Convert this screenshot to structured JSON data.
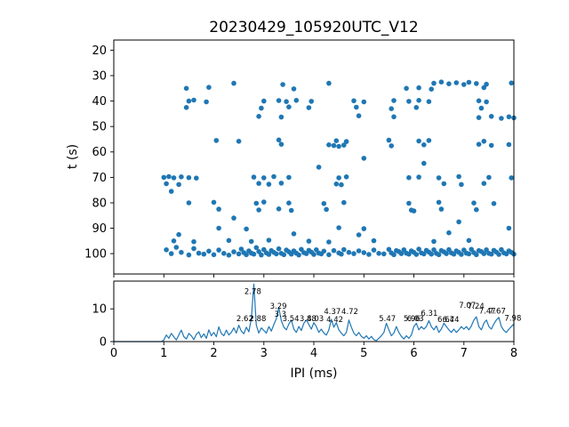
{
  "figure": {
    "title": "20230429_105920UTC_V12",
    "accent_color": "#1f77b4",
    "background": "#ffffff"
  },
  "chart_data": [
    {
      "id": "ipi-vs-time-scatter",
      "type": "scatter",
      "title": "20230429_105920UTC_V12",
      "xlabel": "",
      "ylabel": "t (s)",
      "xlim": [
        0,
        8
      ],
      "ylim": [
        16,
        108
      ],
      "y_axis_inverted": true,
      "xticks": [
        0,
        1,
        2,
        3,
        4,
        5,
        6,
        7,
        8
      ],
      "yticks": [
        20,
        30,
        40,
        50,
        60,
        70,
        80,
        90,
        100
      ],
      "grid": false,
      "marker_color": "#1f77b4",
      "points": [
        [
          2.4,
          33
        ],
        [
          3.38,
          33.5
        ],
        [
          4.3,
          33
        ],
        [
          6.4,
          33
        ],
        [
          6.55,
          32.5
        ],
        [
          6.7,
          33.2
        ],
        [
          6.85,
          32.8
        ],
        [
          7.0,
          33.5
        ],
        [
          7.1,
          32.6
        ],
        [
          7.25,
          33.1
        ],
        [
          7.45,
          33.4
        ],
        [
          7.95,
          32.9
        ],
        [
          1.45,
          35
        ],
        [
          1.9,
          34.6
        ],
        [
          3.6,
          35.2
        ],
        [
          5.85,
          35
        ],
        [
          6.1,
          34.8
        ],
        [
          6.35,
          35.3
        ],
        [
          7.4,
          34.7
        ],
        [
          1.5,
          40
        ],
        [
          1.6,
          39.6
        ],
        [
          1.85,
          40.3
        ],
        [
          3.0,
          40
        ],
        [
          3.3,
          39.8
        ],
        [
          3.45,
          40.2
        ],
        [
          3.65,
          39.7
        ],
        [
          3.95,
          40.1
        ],
        [
          4.8,
          39.9
        ],
        [
          5.0,
          40.3
        ],
        [
          5.6,
          39.8
        ],
        [
          5.9,
          40.1
        ],
        [
          6.1,
          39.7
        ],
        [
          6.3,
          40.2
        ],
        [
          7.3,
          39.9
        ],
        [
          7.45,
          40.3
        ],
        [
          1.45,
          42.5
        ],
        [
          2.95,
          42.8
        ],
        [
          3.5,
          42.3
        ],
        [
          3.9,
          42.6
        ],
        [
          4.85,
          42.4
        ],
        [
          5.55,
          43
        ],
        [
          6.05,
          42.5
        ],
        [
          7.35,
          42.8
        ],
        [
          2.9,
          46
        ],
        [
          3.35,
          46.3
        ],
        [
          4.9,
          45.8
        ],
        [
          5.6,
          46.2
        ],
        [
          7.3,
          46.5
        ],
        [
          7.55,
          46
        ],
        [
          7.75,
          46.8
        ],
        [
          7.9,
          46.2
        ],
        [
          8.0,
          46.6
        ],
        [
          2.05,
          55.5
        ],
        [
          2.5,
          55.8
        ],
        [
          3.3,
          55.3
        ],
        [
          4.45,
          55.6
        ],
        [
          4.65,
          55.9
        ],
        [
          5.5,
          55.4
        ],
        [
          6.1,
          55.7
        ],
        [
          6.3,
          55.5
        ],
        [
          7.4,
          55.8
        ],
        [
          3.35,
          57
        ],
        [
          4.3,
          57.2
        ],
        [
          4.4,
          57.5
        ],
        [
          4.5,
          57.8
        ],
        [
          4.6,
          57.3
        ],
        [
          5.55,
          57.6
        ],
        [
          6.2,
          57.2
        ],
        [
          7.3,
          57
        ],
        [
          7.55,
          57.4
        ],
        [
          7.9,
          57.1
        ],
        [
          6.2,
          64.5
        ],
        [
          4.1,
          66
        ],
        [
          5.0,
          62.5
        ],
        [
          1.0,
          70
        ],
        [
          1.1,
          69.7
        ],
        [
          1.2,
          70.2
        ],
        [
          1.35,
          69.8
        ],
        [
          1.5,
          70.1
        ],
        [
          1.65,
          70.3
        ],
        [
          2.8,
          69.9
        ],
        [
          3.0,
          70.2
        ],
        [
          3.2,
          69.7
        ],
        [
          3.5,
          70
        ],
        [
          4.5,
          70.2
        ],
        [
          4.65,
          69.8
        ],
        [
          5.9,
          70.1
        ],
        [
          6.1,
          69.9
        ],
        [
          6.5,
          70.2
        ],
        [
          6.9,
          69.7
        ],
        [
          7.5,
          70
        ],
        [
          7.95,
          70.2
        ],
        [
          1.05,
          72.5
        ],
        [
          1.3,
          72.8
        ],
        [
          2.9,
          72.4
        ],
        [
          3.1,
          72.7
        ],
        [
          3.35,
          72.3
        ],
        [
          4.45,
          72.6
        ],
        [
          4.55,
          72.9
        ],
        [
          6.6,
          72.5
        ],
        [
          6.95,
          72.8
        ],
        [
          7.4,
          72.4
        ],
        [
          1.15,
          75.5
        ],
        [
          1.5,
          80
        ],
        [
          2.0,
          79.8
        ],
        [
          2.85,
          80.2
        ],
        [
          3.0,
          79.7
        ],
        [
          3.5,
          80.1
        ],
        [
          4.2,
          80.3
        ],
        [
          4.6,
          79.9
        ],
        [
          5.9,
          80.2
        ],
        [
          6.5,
          79.8
        ],
        [
          7.2,
          80.1
        ],
        [
          7.6,
          80.3
        ],
        [
          2.1,
          82.5
        ],
        [
          2.9,
          82.8
        ],
        [
          3.3,
          82.4
        ],
        [
          3.55,
          83
        ],
        [
          4.25,
          82.6
        ],
        [
          5.95,
          82.9
        ],
        [
          6.55,
          82.5
        ],
        [
          7.25,
          82.7
        ],
        [
          6.0,
          83.2
        ],
        [
          2.1,
          90
        ],
        [
          2.65,
          90.3
        ],
        [
          4.5,
          89.8
        ],
        [
          5.0,
          90.2
        ],
        [
          7.9,
          90
        ],
        [
          1.3,
          92.5
        ],
        [
          3.6,
          92.2
        ],
        [
          4.9,
          92.6
        ],
        [
          6.7,
          91.8
        ],
        [
          2.4,
          86
        ],
        [
          6.9,
          87.5
        ],
        [
          1.2,
          95
        ],
        [
          1.6,
          95.3
        ],
        [
          2.3,
          94.8
        ],
        [
          2.75,
          95.2
        ],
        [
          3.1,
          94.7
        ],
        [
          3.9,
          95.1
        ],
        [
          4.3,
          95.4
        ],
        [
          5.2,
          94.9
        ],
        [
          6.4,
          95.2
        ],
        [
          7.1,
          94.8
        ],
        [
          1.05,
          98.5
        ],
        [
          1.15,
          100
        ],
        [
          1.25,
          97.5
        ],
        [
          1.35,
          99.5
        ],
        [
          1.5,
          100.5
        ],
        [
          1.6,
          98
        ],
        [
          1.7,
          99.8
        ],
        [
          1.8,
          100.2
        ],
        [
          1.9,
          99
        ],
        [
          2.0,
          100.4
        ],
        [
          2.1,
          98.6
        ],
        [
          2.2,
          99.9
        ],
        [
          2.3,
          100.6
        ],
        [
          2.4,
          99.3
        ],
        [
          2.5,
          100.1
        ],
        [
          2.55,
          98.2
        ],
        [
          2.6,
          99.6
        ],
        [
          2.65,
          100.4
        ],
        [
          2.7,
          98.9
        ],
        [
          2.75,
          99.8
        ],
        [
          2.8,
          100.2
        ],
        [
          2.85,
          97.6
        ],
        [
          2.9,
          99.2
        ],
        [
          2.95,
          100.5
        ],
        [
          3.0,
          98.4
        ],
        [
          3.05,
          99.7
        ],
        [
          3.1,
          100.3
        ],
        [
          3.15,
          98.8
        ],
        [
          3.2,
          99.5
        ],
        [
          3.25,
          100.1
        ],
        [
          3.3,
          98.1
        ],
        [
          3.35,
          99.9
        ],
        [
          3.4,
          100.4
        ],
        [
          3.45,
          98.6
        ],
        [
          3.5,
          99.3
        ],
        [
          3.55,
          100.2
        ],
        [
          3.6,
          98.9
        ],
        [
          3.65,
          99.8
        ],
        [
          3.7,
          100.5
        ],
        [
          3.75,
          98.3
        ],
        [
          3.8,
          99.6
        ],
        [
          3.85,
          100.0
        ],
        [
          3.9,
          98.7
        ],
        [
          3.95,
          99.4
        ],
        [
          4.0,
          100.3
        ],
        [
          4.05,
          98.5
        ],
        [
          4.1,
          99.8
        ],
        [
          4.15,
          100.1
        ],
        [
          4.2,
          99.0
        ],
        [
          4.3,
          100.4
        ],
        [
          4.4,
          98.8
        ],
        [
          4.5,
          99.7
        ],
        [
          4.55,
          100.2
        ],
        [
          4.6,
          98.4
        ],
        [
          4.7,
          99.5
        ],
        [
          4.8,
          100.0
        ],
        [
          4.9,
          98.9
        ],
        [
          5.0,
          99.6
        ],
        [
          5.1,
          100.3
        ],
        [
          5.2,
          98.6
        ],
        [
          5.3,
          99.9
        ],
        [
          5.4,
          100.1
        ],
        [
          5.5,
          98.3
        ],
        [
          5.55,
          99.7
        ],
        [
          5.6,
          100.4
        ],
        [
          5.65,
          98.8
        ],
        [
          5.7,
          99.2
        ],
        [
          5.75,
          100.0
        ],
        [
          5.8,
          98.5
        ],
        [
          5.85,
          99.8
        ],
        [
          5.9,
          100.2
        ],
        [
          5.95,
          98.9
        ],
        [
          6.0,
          99.5
        ],
        [
          6.05,
          100.3
        ],
        [
          6.1,
          98.2
        ],
        [
          6.15,
          99.7
        ],
        [
          6.2,
          100.1
        ],
        [
          6.25,
          98.7
        ],
        [
          6.3,
          99.4
        ],
        [
          6.35,
          100.2
        ],
        [
          6.4,
          98.5
        ],
        [
          6.45,
          99.9
        ],
        [
          6.5,
          100.4
        ],
        [
          6.55,
          98.8
        ],
        [
          6.6,
          99.3
        ],
        [
          6.65,
          100.0
        ],
        [
          6.7,
          98.4
        ],
        [
          6.75,
          99.7
        ],
        [
          6.8,
          100.2
        ],
        [
          6.85,
          98.9
        ],
        [
          6.9,
          99.5
        ],
        [
          6.95,
          100.3
        ],
        [
          7.0,
          98.6
        ],
        [
          7.05,
          99.8
        ],
        [
          7.1,
          100.1
        ],
        [
          7.15,
          98.3
        ],
        [
          7.2,
          99.6
        ],
        [
          7.25,
          100.4
        ],
        [
          7.3,
          98.8
        ],
        [
          7.35,
          99.2
        ],
        [
          7.4,
          100.0
        ],
        [
          7.45,
          98.5
        ],
        [
          7.5,
          99.9
        ],
        [
          7.55,
          100.2
        ],
        [
          7.6,
          98.7
        ],
        [
          7.65,
          99.4
        ],
        [
          7.7,
          100.3
        ],
        [
          7.75,
          98.4
        ],
        [
          7.8,
          99.7
        ],
        [
          7.85,
          100.1
        ],
        [
          7.9,
          98.9
        ],
        [
          7.95,
          99.5
        ],
        [
          8.0,
          100.2
        ]
      ]
    },
    {
      "id": "ipi-rate-line",
      "type": "line",
      "xlabel": "IPI (ms)",
      "ylabel": "",
      "xlim": [
        0,
        8
      ],
      "ylim": [
        0,
        18.5
      ],
      "xticks": [
        0,
        1,
        2,
        3,
        4,
        5,
        6,
        7,
        8
      ],
      "yticks": [
        0,
        10
      ],
      "grid": false,
      "line_color": "#1f77b4",
      "x_start": 0,
      "x_step": 0.05,
      "y": [
        0,
        0,
        0,
        0,
        0,
        0,
        0,
        0,
        0,
        0,
        0,
        0,
        0,
        0,
        0,
        0,
        0,
        0,
        0,
        0,
        0.5,
        2,
        1,
        2.5,
        1.5,
        0.5,
        2,
        3.5,
        1.5,
        0.8,
        2.5,
        1.8,
        0.6,
        2.2,
        3,
        1.2,
        2.4,
        1,
        3.6,
        1.8,
        2.8,
        1.5,
        4.5,
        2.5,
        1.8,
        3.5,
        2,
        2.8,
        4.2,
        2.6,
        5,
        3.2,
        2.4,
        4.4,
        3,
        7,
        17.6,
        5,
        2.6,
        4.2,
        3.4,
        2.6,
        4.6,
        3.2,
        5.2,
        7,
        10.4,
        6.4,
        4.4,
        3.6,
        5.4,
        6.6,
        3.8,
        2.8,
        4.6,
        3.4,
        5.6,
        6.6,
        5.2,
        3.8,
        5.8,
        4.6,
        2.8,
        3.8,
        2.6,
        2,
        3.6,
        6.8,
        4.4,
        5.8,
        3.6,
        2.6,
        1.8,
        2.8,
        6.6,
        4.4,
        2.6,
        1.8,
        2.8,
        1.6,
        1,
        1.8,
        0.8,
        1.6,
        0.6,
        0.3,
        1,
        1.8,
        2.8,
        5.6,
        3.6,
        1.8,
        2.6,
        4.6,
        2.8,
        1.6,
        0.8,
        1.8,
        1,
        2,
        4.6,
        5.6,
        3.6,
        4.6,
        3.8,
        4.6,
        6.4,
        4.6,
        3.6,
        4.8,
        2.8,
        3.8,
        5.6,
        4.6,
        3.6,
        2.8,
        3.8,
        2.8,
        3.6,
        4.6,
        3.8,
        4.6,
        3.6,
        4.8,
        6.6,
        7.6,
        4.6,
        3.6,
        5.6,
        6.6,
        4.6,
        3.8,
        5.4,
        6.6,
        7.4,
        4.6,
        3.4,
        2.8,
        3.8,
        4.6,
        5.4
      ],
      "annotations": [
        {
          "label": "2.78",
          "x": 2.78,
          "y": 14.5
        },
        {
          "label": "2.62",
          "x": 2.62,
          "y": 6.2
        },
        {
          "label": "2.88",
          "x": 2.88,
          "y": 6.2
        },
        {
          "label": "3.29",
          "x": 3.29,
          "y": 10.1
        },
        {
          "label": "3.3",
          "x": 3.33,
          "y": 7.6
        },
        {
          "label": "3.54",
          "x": 3.54,
          "y": 6.3
        },
        {
          "label": "3.88",
          "x": 3.88,
          "y": 6.3
        },
        {
          "label": "4.03",
          "x": 4.03,
          "y": 6.3
        },
        {
          "label": "4.42",
          "x": 4.42,
          "y": 6.0
        },
        {
          "label": "4.37",
          "x": 4.37,
          "y": 8.4
        },
        {
          "label": "4.72",
          "x": 4.72,
          "y": 8.4
        },
        {
          "label": "5.47",
          "x": 5.47,
          "y": 6.3
        },
        {
          "label": "5.96",
          "x": 5.96,
          "y": 6.3
        },
        {
          "label": "6.03",
          "x": 6.03,
          "y": 6.3
        },
        {
          "label": "6.31",
          "x": 6.31,
          "y": 7.9
        },
        {
          "label": "6.64",
          "x": 6.64,
          "y": 6.0
        },
        {
          "label": "6.74",
          "x": 6.74,
          "y": 6.0
        },
        {
          "label": "7.07",
          "x": 7.07,
          "y": 10.3
        },
        {
          "label": "7.24",
          "x": 7.24,
          "y": 10.0
        },
        {
          "label": "7.47",
          "x": 7.47,
          "y": 8.6
        },
        {
          "label": "7.67",
          "x": 7.67,
          "y": 8.6
        },
        {
          "label": "7.98",
          "x": 7.98,
          "y": 6.4
        }
      ]
    }
  ]
}
